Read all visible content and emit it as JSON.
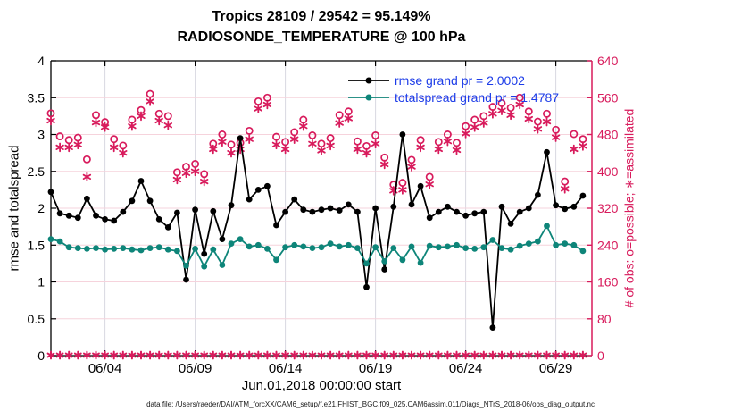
{
  "figure": {
    "footer": "data file: /Users/raeder/DAI/ATM_forcXX/CAM6_setup/f.e21.FHIST_BGC.f09_025.CAM6assim.011/Diags_NTrS_2018-06/obs_diag_output.nc"
  },
  "chart_data": {
    "type": "line",
    "title": "Tropics 28109 / 29542 = 95.149%",
    "subtitle": "RADIOSONDE_TEMPERATURE @ 100 hPa",
    "xlabel": "Jun.01,2018 00:00:00 start",
    "ylabel_left": "rmse and totalspread",
    "ylabel_right": "# of obs: o=possible; ∗=assimilated",
    "legend_position": "top-right-inside",
    "grid": true,
    "colors": {
      "rmse": "#000000",
      "totalspread": "#0e8579",
      "obs": "#d81b5c",
      "legend_text": "#1c3ce8",
      "grid_horizontal": "#f6d3dc",
      "grid_vertical": "#d8d8e2",
      "axis_black": "#000000"
    },
    "x_axis": {
      "range_days": [
        0,
        30
      ],
      "ticks": [
        {
          "day": 3,
          "label": "06/04"
        },
        {
          "day": 8,
          "label": "06/09"
        },
        {
          "day": 13,
          "label": "06/14"
        },
        {
          "day": 18,
          "label": "06/19"
        },
        {
          "day": 23,
          "label": "06/24"
        },
        {
          "day": 28,
          "label": "06/29"
        }
      ]
    },
    "y_axis_left": {
      "range": [
        0,
        4
      ],
      "ticks": [
        0,
        0.5,
        1,
        1.5,
        2,
        2.5,
        3,
        3.5,
        4
      ],
      "tick_labels": [
        "0",
        "0.5",
        "1",
        "1.5",
        "2",
        "2.5",
        "3",
        "3.5",
        "4"
      ]
    },
    "y_axis_right": {
      "range": [
        0,
        640
      ],
      "ticks": [
        0,
        80,
        160,
        240,
        320,
        400,
        480,
        560,
        640
      ],
      "tick_labels": [
        "0",
        "80",
        "160",
        "240",
        "320",
        "400",
        "480",
        "560",
        "640"
      ]
    },
    "times_days": [
      0,
      0.5,
      1,
      1.5,
      2,
      2.5,
      3,
      3.5,
      4,
      4.5,
      5,
      5.5,
      6,
      6.5,
      7,
      7.5,
      8,
      8.5,
      9,
      9.5,
      10,
      10.5,
      11,
      11.5,
      12,
      12.5,
      13,
      13.5,
      14,
      14.5,
      15,
      15.5,
      16,
      16.5,
      17,
      17.5,
      18,
      18.5,
      19,
      19.5,
      20,
      20.5,
      21,
      21.5,
      22,
      22.5,
      23,
      23.5,
      24,
      24.5,
      25,
      25.5,
      26,
      26.5,
      27,
      27.5,
      28,
      28.5,
      29,
      29.5
    ],
    "series": [
      {
        "name": "rmse",
        "legend": "rmse grand pr = 2.0002",
        "axis": "left",
        "marker": "filled-dot",
        "line": true,
        "values": [
          2.22,
          1.93,
          1.9,
          1.87,
          2.13,
          1.9,
          1.85,
          1.83,
          1.95,
          2.1,
          2.37,
          2.1,
          1.85,
          1.74,
          1.94,
          1.03,
          1.98,
          1.38,
          1.96,
          1.58,
          2.04,
          2.95,
          2.12,
          2.25,
          2.3,
          1.77,
          1.95,
          2.12,
          1.98,
          1.95,
          1.98,
          2.0,
          1.97,
          2.05,
          1.95,
          0.93,
          2.0,
          1.17,
          2.02,
          3.0,
          2.05,
          2.3,
          1.87,
          1.95,
          2.02,
          1.95,
          1.9,
          1.93,
          1.95,
          0.38,
          2.02,
          1.79,
          1.95,
          2.0,
          2.18,
          2.76,
          2.04,
          1.99,
          2.02,
          2.17
        ]
      },
      {
        "name": "totalspread",
        "legend": "totalspread grand pr = 1.4787",
        "axis": "left",
        "marker": "filled-dot",
        "line": true,
        "values": [
          1.58,
          1.55,
          1.47,
          1.46,
          1.45,
          1.46,
          1.44,
          1.45,
          1.46,
          1.44,
          1.43,
          1.46,
          1.47,
          1.44,
          1.42,
          1.22,
          1.45,
          1.21,
          1.44,
          1.23,
          1.52,
          1.58,
          1.48,
          1.5,
          1.45,
          1.3,
          1.47,
          1.5,
          1.48,
          1.46,
          1.47,
          1.52,
          1.48,
          1.5,
          1.46,
          1.25,
          1.47,
          1.28,
          1.46,
          1.3,
          1.48,
          1.26,
          1.49,
          1.47,
          1.48,
          1.5,
          1.46,
          1.45,
          1.47,
          1.57,
          1.46,
          1.44,
          1.49,
          1.52,
          1.55,
          1.76,
          1.5,
          1.52,
          1.5,
          1.42
        ]
      },
      {
        "name": "possible-obs",
        "legend": "o=possible",
        "axis": "right",
        "marker": "open-circle",
        "line": false,
        "values": [
          526,
          476,
          468,
          473,
          426,
          522,
          507,
          470,
          456,
          512,
          533,
          568,
          525,
          520,
          398,
          410,
          416,
          394,
          460,
          480,
          458,
          462,
          488,
          552,
          560,
          475,
          464,
          485,
          512,
          478,
          460,
          472,
          522,
          530,
          465,
          455,
          478,
          430,
          371,
          375,
          425,
          468,
          388,
          464,
          480,
          462,
          498,
          512,
          520,
          540,
          548,
          538,
          560,
          530,
          508,
          525,
          490,
          378,
          481,
          470
        ]
      },
      {
        "name": "assimilated-obs",
        "legend": "∗=assimilated",
        "axis": "right",
        "marker": "asterisk",
        "line": false,
        "values": [
          510,
          452,
          452,
          458,
          388,
          506,
          496,
          452,
          440,
          498,
          520,
          552,
          510,
          500,
          382,
          396,
          400,
          378,
          448,
          464,
          440,
          448,
          470,
          536,
          545,
          458,
          448,
          470,
          498,
          460,
          445,
          456,
          505,
          515,
          448,
          440,
          460,
          415,
          358,
          360,
          410,
          452,
          372,
          448,
          465,
          446,
          482,
          496,
          505,
          525,
          532,
          522,
          545,
          514,
          492,
          508,
          474,
          362,
          448,
          455
        ]
      },
      {
        "name": "obs-zero-row",
        "legend": "",
        "axis": "right",
        "marker": "asterisk-circle",
        "line": false,
        "constant_value": 0
      }
    ]
  }
}
